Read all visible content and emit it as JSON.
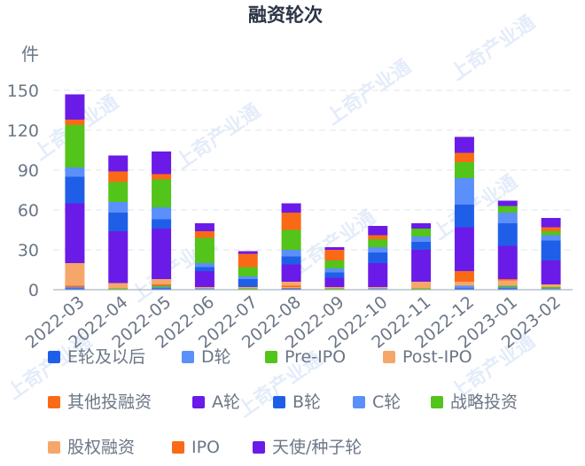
{
  "chart_data": {
    "type": "bar",
    "stacked": true,
    "title": "融资轮次",
    "ylabel": "件",
    "ylim": [
      0,
      150
    ],
    "yticks": [
      0,
      30,
      60,
      90,
      120,
      150
    ],
    "grid": true,
    "legend_position": "bottom",
    "categories": [
      "2022-03",
      "2022-04",
      "2022-05",
      "2022-06",
      "2022-07",
      "2022-08",
      "2022-09",
      "2022-10",
      "2022-11",
      "2022-12",
      "2023-01",
      "2023-02"
    ],
    "series": [
      {
        "name": "E轮及以后",
        "color": "#1f5fe8",
        "values": [
          1,
          0,
          1,
          0,
          0,
          1,
          0,
          0,
          0,
          1,
          1,
          0
        ]
      },
      {
        "name": "D轮",
        "color": "#5b8ff9",
        "values": [
          1,
          0,
          1,
          1,
          0,
          0,
          0,
          1,
          0,
          2,
          1,
          1
        ]
      },
      {
        "name": "Pre-IPO",
        "color": "#52c41a",
        "values": [
          0,
          1,
          1,
          0,
          1,
          0,
          1,
          0,
          1,
          0,
          1,
          1
        ]
      },
      {
        "name": "Post-IPO",
        "color": "#f7a66a",
        "values": [
          0,
          1,
          0,
          0,
          0,
          1,
          0,
          0,
          1,
          1,
          0,
          0
        ]
      },
      {
        "name": "其他投融资",
        "color": "#fa6a16",
        "values": [
          1,
          0,
          1,
          0,
          0,
          1,
          0,
          0,
          0,
          0,
          0,
          0
        ]
      },
      {
        "name": "股权融资",
        "color": "#f7a66a",
        "values": [
          17,
          3,
          4,
          1,
          1,
          3,
          1,
          1,
          4,
          2,
          4,
          2
        ]
      },
      {
        "name": "IPO",
        "color": "#fa6a16",
        "values": [
          0,
          0,
          0,
          0,
          0,
          0,
          0,
          0,
          0,
          8,
          1,
          0
        ]
      },
      {
        "name": "A轮",
        "color": "#6a1be8",
        "values": [
          45,
          39,
          38,
          12,
          0,
          13,
          7,
          18,
          24,
          33,
          25,
          18
        ]
      },
      {
        "name": "B轮",
        "color": "#1f5fe8",
        "values": [
          20,
          14,
          7,
          3,
          6,
          6,
          4,
          8,
          6,
          17,
          17,
          15
        ]
      },
      {
        "name": "C轮",
        "color": "#5b8ff9",
        "values": [
          7,
          8,
          9,
          3,
          2,
          5,
          3,
          4,
          4,
          20,
          8,
          4
        ]
      },
      {
        "name": "战略投资",
        "color": "#52c41a",
        "values": [
          32,
          15,
          21,
          19,
          7,
          15,
          6,
          6,
          6,
          12,
          5,
          3
        ]
      },
      {
        "name": "其他投融资2",
        "legend": false,
        "color": "#fa6a16",
        "values": [
          4,
          8,
          4,
          5,
          10,
          13,
          8,
          3,
          0,
          7,
          0,
          3
        ]
      },
      {
        "name": "天使/种子轮",
        "color": "#6a1be8",
        "values": [
          19,
          12,
          17,
          6,
          2,
          7,
          2,
          7,
          4,
          12,
          4,
          7
        ]
      }
    ],
    "legend_order": [
      "E轮及以后",
      "D轮",
      "Pre-IPO",
      "Post-IPO",
      "其他投融资",
      "A轮",
      "B轮",
      "C轮",
      "战略投资",
      "股权融资",
      "IPO",
      "天使/种子轮"
    ],
    "watermark": "上奇产业通"
  }
}
